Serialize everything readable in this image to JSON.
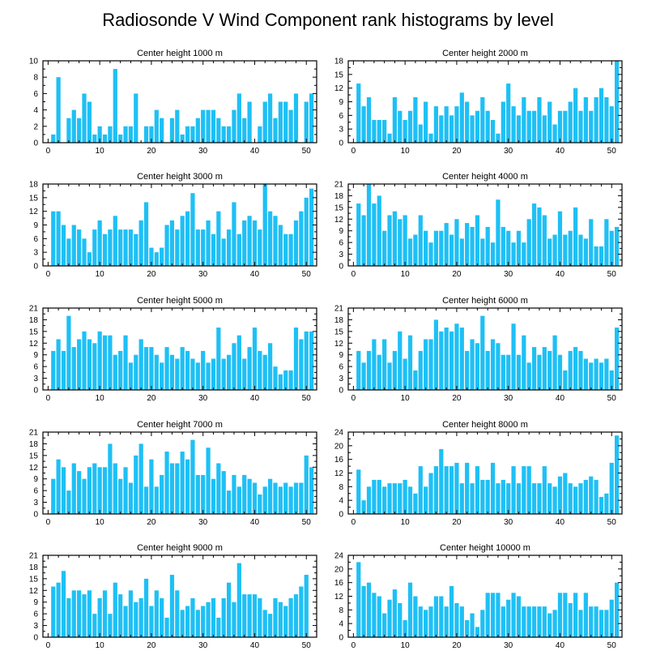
{
  "figure": {
    "title": "Radiosonde V Wind Component rank histograms by level",
    "bar_color": "#1ec0f5",
    "axis_color": "#000000"
  },
  "chart_data": [
    {
      "type": "bar",
      "title": "Center height 1000 m",
      "xlim": [
        -1,
        52
      ],
      "ylim": [
        0,
        10
      ],
      "xticks": [
        0,
        10,
        20,
        30,
        40,
        50
      ],
      "yticks": [
        0,
        2,
        4,
        6,
        8,
        10
      ],
      "x": [
        0,
        1,
        2,
        3,
        4,
        5,
        6,
        7,
        8,
        9,
        10,
        11,
        12,
        13,
        14,
        15,
        16,
        17,
        18,
        19,
        20,
        21,
        22,
        23,
        24,
        25,
        26,
        27,
        28,
        29,
        30,
        31,
        32,
        33,
        34,
        35,
        36,
        37,
        38,
        39,
        40,
        41,
        42,
        43,
        44,
        45,
        46,
        47,
        48,
        49,
        50,
        51
      ],
      "values": [
        0,
        1,
        8,
        0,
        3,
        4,
        3,
        6,
        5,
        1,
        2,
        1,
        2,
        9,
        1,
        2,
        2,
        6,
        0,
        2,
        2,
        4,
        3,
        0,
        3,
        4,
        1,
        2,
        2,
        3,
        4,
        4,
        4,
        3,
        2,
        2,
        4,
        6,
        3,
        5,
        0,
        2,
        5,
        6,
        3,
        5,
        5,
        4,
        6,
        0,
        5,
        6
      ]
    },
    {
      "type": "bar",
      "title": "Center height 2000 m",
      "xlim": [
        -1,
        52
      ],
      "ylim": [
        0,
        18
      ],
      "xticks": [
        0,
        10,
        20,
        30,
        40,
        50
      ],
      "yticks": [
        0,
        3,
        6,
        9,
        12,
        15,
        18
      ],
      "x": [
        0,
        1,
        2,
        3,
        4,
        5,
        6,
        7,
        8,
        9,
        10,
        11,
        12,
        13,
        14,
        15,
        16,
        17,
        18,
        19,
        20,
        21,
        22,
        23,
        24,
        25,
        26,
        27,
        28,
        29,
        30,
        31,
        32,
        33,
        34,
        35,
        36,
        37,
        38,
        39,
        40,
        41,
        42,
        43,
        44,
        45,
        46,
        47,
        48,
        49,
        50,
        51
      ],
      "values": [
        0,
        13,
        8,
        10,
        5,
        5,
        5,
        2,
        10,
        7,
        5,
        7,
        10,
        4,
        9,
        2,
        8,
        6,
        8,
        6,
        8,
        11,
        9,
        6,
        7,
        10,
        7,
        5,
        2,
        9,
        13,
        8,
        6,
        10,
        7,
        7,
        10,
        6,
        9,
        4,
        7,
        7,
        9,
        12,
        7,
        10,
        7,
        10,
        12,
        10,
        8,
        18
      ]
    },
    {
      "type": "bar",
      "title": "Center height 3000 m",
      "xlim": [
        -1,
        52
      ],
      "ylim": [
        0,
        18
      ],
      "xticks": [
        0,
        10,
        20,
        30,
        40,
        50
      ],
      "yticks": [
        0,
        3,
        6,
        9,
        12,
        15,
        18
      ],
      "x": [
        0,
        1,
        2,
        3,
        4,
        5,
        6,
        7,
        8,
        9,
        10,
        11,
        12,
        13,
        14,
        15,
        16,
        17,
        18,
        19,
        20,
        21,
        22,
        23,
        24,
        25,
        26,
        27,
        28,
        29,
        30,
        31,
        32,
        33,
        34,
        35,
        36,
        37,
        38,
        39,
        40,
        41,
        42,
        43,
        44,
        45,
        46,
        47,
        48,
        49,
        50,
        51
      ],
      "values": [
        0,
        12,
        12,
        9,
        6,
        9,
        8,
        6,
        3,
        8,
        10,
        7,
        8,
        11,
        8,
        8,
        8,
        7,
        10,
        14,
        4,
        3,
        4,
        9,
        10,
        8,
        11,
        12,
        16,
        8,
        8,
        10,
        7,
        12,
        6,
        8,
        14,
        7,
        10,
        11,
        10,
        8,
        18,
        12,
        11,
        9,
        7,
        7,
        10,
        12,
        15,
        17
      ]
    },
    {
      "type": "bar",
      "title": "Center height 4000 m",
      "xlim": [
        -1,
        52
      ],
      "ylim": [
        0,
        21
      ],
      "xticks": [
        0,
        10,
        20,
        30,
        40,
        50
      ],
      "yticks": [
        0,
        3,
        6,
        9,
        12,
        15,
        18,
        21
      ],
      "x": [
        0,
        1,
        2,
        3,
        4,
        5,
        6,
        7,
        8,
        9,
        10,
        11,
        12,
        13,
        14,
        15,
        16,
        17,
        18,
        19,
        20,
        21,
        22,
        23,
        24,
        25,
        26,
        27,
        28,
        29,
        30,
        31,
        32,
        33,
        34,
        35,
        36,
        37,
        38,
        39,
        40,
        41,
        42,
        43,
        44,
        45,
        46,
        47,
        48,
        49,
        50,
        51
      ],
      "values": [
        0,
        16,
        13,
        21,
        16,
        18,
        9,
        13,
        14,
        12,
        13,
        7,
        8,
        13,
        9,
        6,
        9,
        9,
        11,
        8,
        12,
        7,
        11,
        10,
        13,
        7,
        10,
        6,
        17,
        10,
        9,
        6,
        9,
        6,
        12,
        16,
        15,
        13,
        7,
        8,
        14,
        8,
        9,
        15,
        8,
        7,
        12,
        5,
        5,
        12,
        9,
        10
      ]
    },
    {
      "type": "bar",
      "title": "Center height 5000 m",
      "xlim": [
        -1,
        52
      ],
      "ylim": [
        0,
        21
      ],
      "xticks": [
        0,
        10,
        20,
        30,
        40,
        50
      ],
      "yticks": [
        0,
        3,
        6,
        9,
        12,
        15,
        18,
        21
      ],
      "x": [
        0,
        1,
        2,
        3,
        4,
        5,
        6,
        7,
        8,
        9,
        10,
        11,
        12,
        13,
        14,
        15,
        16,
        17,
        18,
        19,
        20,
        21,
        22,
        23,
        24,
        25,
        26,
        27,
        28,
        29,
        30,
        31,
        32,
        33,
        34,
        35,
        36,
        37,
        38,
        39,
        40,
        41,
        42,
        43,
        44,
        45,
        46,
        47,
        48,
        49,
        50,
        51
      ],
      "values": [
        0,
        10,
        13,
        10,
        19,
        11,
        13,
        15,
        13,
        12,
        15,
        14,
        14,
        9,
        10,
        14,
        7,
        9,
        13,
        11,
        11,
        9,
        7,
        11,
        9,
        8,
        11,
        10,
        8,
        7,
        10,
        7,
        8,
        16,
        8,
        9,
        12,
        14,
        8,
        11,
        16,
        10,
        9,
        12,
        6,
        4,
        5,
        5,
        16,
        13,
        15,
        15
      ]
    },
    {
      "type": "bar",
      "title": "Center height 6000 m",
      "xlim": [
        -1,
        52
      ],
      "ylim": [
        0,
        21
      ],
      "xticks": [
        0,
        10,
        20,
        30,
        40,
        50
      ],
      "yticks": [
        0,
        3,
        6,
        9,
        12,
        15,
        18,
        21
      ],
      "x": [
        0,
        1,
        2,
        3,
        4,
        5,
        6,
        7,
        8,
        9,
        10,
        11,
        12,
        13,
        14,
        15,
        16,
        17,
        18,
        19,
        20,
        21,
        22,
        23,
        24,
        25,
        26,
        27,
        28,
        29,
        30,
        31,
        32,
        33,
        34,
        35,
        36,
        37,
        38,
        39,
        40,
        41,
        42,
        43,
        44,
        45,
        46,
        47,
        48,
        49,
        50,
        51
      ],
      "values": [
        0,
        10,
        7,
        10,
        13,
        9,
        13,
        7,
        10,
        15,
        8,
        14,
        5,
        10,
        13,
        13,
        18,
        15,
        16,
        15,
        17,
        16,
        10,
        13,
        12,
        19,
        10,
        13,
        12,
        9,
        9,
        17,
        9,
        14,
        7,
        11,
        9,
        11,
        10,
        14,
        9,
        5,
        10,
        11,
        10,
        8,
        7,
        8,
        7,
        8,
        5,
        16
      ]
    },
    {
      "type": "bar",
      "title": "Center height 7000 m",
      "xlim": [
        -1,
        52
      ],
      "ylim": [
        0,
        21
      ],
      "xticks": [
        0,
        10,
        20,
        30,
        40,
        50
      ],
      "yticks": [
        0,
        3,
        6,
        9,
        12,
        15,
        18,
        21
      ],
      "x": [
        0,
        1,
        2,
        3,
        4,
        5,
        6,
        7,
        8,
        9,
        10,
        11,
        12,
        13,
        14,
        15,
        16,
        17,
        18,
        19,
        20,
        21,
        22,
        23,
        24,
        25,
        26,
        27,
        28,
        29,
        30,
        31,
        32,
        33,
        34,
        35,
        36,
        37,
        38,
        39,
        40,
        41,
        42,
        43,
        44,
        45,
        46,
        47,
        48,
        49,
        50,
        51
      ],
      "values": [
        0,
        9,
        14,
        12,
        6,
        13,
        11,
        9,
        12,
        13,
        12,
        12,
        18,
        13,
        9,
        12,
        8,
        15,
        18,
        7,
        14,
        7,
        10,
        16,
        13,
        13,
        16,
        14,
        19,
        10,
        10,
        17,
        9,
        13,
        11,
        6,
        10,
        7,
        10,
        9,
        8,
        5,
        7,
        9,
        8,
        7,
        8,
        7,
        8,
        8,
        15,
        12
      ]
    },
    {
      "type": "bar",
      "title": "Center height 8000 m",
      "xlim": [
        -1,
        52
      ],
      "ylim": [
        0,
        24
      ],
      "xticks": [
        0,
        10,
        20,
        30,
        40,
        50
      ],
      "yticks": [
        0,
        4,
        8,
        12,
        16,
        20,
        24
      ],
      "x": [
        0,
        1,
        2,
        3,
        4,
        5,
        6,
        7,
        8,
        9,
        10,
        11,
        12,
        13,
        14,
        15,
        16,
        17,
        18,
        19,
        20,
        21,
        22,
        23,
        24,
        25,
        26,
        27,
        28,
        29,
        30,
        31,
        32,
        33,
        34,
        35,
        36,
        37,
        38,
        39,
        40,
        41,
        42,
        43,
        44,
        45,
        46,
        47,
        48,
        49,
        50,
        51
      ],
      "values": [
        0,
        13,
        4,
        8,
        10,
        10,
        8,
        9,
        9,
        9,
        10,
        8,
        6,
        14,
        8,
        12,
        14,
        19,
        14,
        14,
        15,
        9,
        15,
        9,
        14,
        10,
        10,
        15,
        9,
        10,
        9,
        14,
        9,
        14,
        14,
        9,
        9,
        14,
        9,
        8,
        11,
        12,
        9,
        8,
        9,
        10,
        11,
        10,
        5,
        6,
        15,
        23
      ]
    },
    {
      "type": "bar",
      "title": "Center height 9000 m",
      "xlim": [
        -1,
        52
      ],
      "ylim": [
        0,
        21
      ],
      "xticks": [
        0,
        10,
        20,
        30,
        40,
        50
      ],
      "yticks": [
        0,
        3,
        6,
        9,
        12,
        15,
        18,
        21
      ],
      "x": [
        0,
        1,
        2,
        3,
        4,
        5,
        6,
        7,
        8,
        9,
        10,
        11,
        12,
        13,
        14,
        15,
        16,
        17,
        18,
        19,
        20,
        21,
        22,
        23,
        24,
        25,
        26,
        27,
        28,
        29,
        30,
        31,
        32,
        33,
        34,
        35,
        36,
        37,
        38,
        39,
        40,
        41,
        42,
        43,
        44,
        45,
        46,
        47,
        48,
        49,
        50,
        51
      ],
      "values": [
        0,
        13,
        14,
        17,
        10,
        12,
        12,
        11,
        12,
        6,
        10,
        12,
        6,
        14,
        11,
        8,
        12,
        9,
        10,
        15,
        8,
        12,
        10,
        5,
        16,
        12,
        7,
        8,
        10,
        7,
        8,
        9,
        10,
        5,
        10,
        14,
        9,
        19,
        11,
        11,
        11,
        10,
        7,
        6,
        10,
        9,
        8,
        10,
        11,
        13,
        16,
        0
      ]
    },
    {
      "type": "bar",
      "title": "Center height 10000 m",
      "xlim": [
        -1,
        52
      ],
      "ylim": [
        0,
        24
      ],
      "xticks": [
        0,
        10,
        20,
        30,
        40,
        50
      ],
      "yticks": [
        0,
        4,
        8,
        12,
        16,
        20,
        24
      ],
      "x": [
        0,
        1,
        2,
        3,
        4,
        5,
        6,
        7,
        8,
        9,
        10,
        11,
        12,
        13,
        14,
        15,
        16,
        17,
        18,
        19,
        20,
        21,
        22,
        23,
        24,
        25,
        26,
        27,
        28,
        29,
        30,
        31,
        32,
        33,
        34,
        35,
        36,
        37,
        38,
        39,
        40,
        41,
        42,
        43,
        44,
        45,
        46,
        47,
        48,
        49,
        50,
        51
      ],
      "values": [
        0,
        22,
        15,
        16,
        13,
        12,
        7,
        11,
        14,
        10,
        5,
        16,
        12,
        9,
        8,
        9,
        12,
        12,
        9,
        15,
        10,
        9,
        5,
        7,
        3,
        8,
        13,
        13,
        13,
        9,
        11,
        13,
        12,
        9,
        9,
        9,
        9,
        9,
        7,
        8,
        13,
        13,
        10,
        13,
        8,
        13,
        9,
        9,
        8,
        8,
        11,
        16
      ]
    }
  ]
}
